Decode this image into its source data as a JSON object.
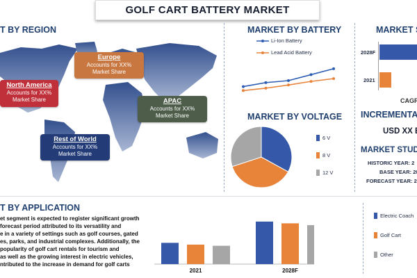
{
  "title": "GOLF CART BATTERY MARKET",
  "region": {
    "section_title": "T BY REGION",
    "boxes": [
      {
        "name": "North America",
        "line1": "Accounts for XX%",
        "line2": "Market Share",
        "color": "#c0303a"
      },
      {
        "name": "Europe",
        "line1": "Accounts for XX%",
        "line2": "Market Share",
        "color": "#c7773f"
      },
      {
        "name": "APAC",
        "line1": "Accounts for XX%",
        "line2": "Market Share",
        "color": "#4e5d4a"
      },
      {
        "name": "Rest of World",
        "line1": "Accounts for XX%",
        "line2": "Market Share",
        "color": "#233c78"
      }
    ]
  },
  "battery": {
    "section_title": "MARKET BY BATTERY",
    "legend": [
      {
        "label": "Li-Ion Battery",
        "color": "#2d5db3"
      },
      {
        "label": "Lead Acid Battery",
        "color": "#e8833a"
      }
    ]
  },
  "voltage": {
    "section_title": "MARKET BY VOLTAGE",
    "legend": [
      {
        "label": "6 V",
        "color": "#3559a8"
      },
      {
        "label": "8 V",
        "color": "#e8833a"
      },
      {
        "label": "12 V",
        "color": "#a6a6a6"
      }
    ]
  },
  "right_panel": {
    "section_title": "MARKET S",
    "bar_labels": [
      "2028F",
      "2021"
    ],
    "cagr": "CAGR",
    "incremental": "INCREMENTAL G",
    "usd": "USD XX BI",
    "study_title": "MARKET STUDY",
    "study_lines": [
      "HISTORIC YEAR: 2",
      "BASE YEAR: 20",
      "FORECAST YEAR: 20"
    ]
  },
  "application": {
    "section_title": "T BY APPLICATION",
    "text_lines": [
      "et segment is expected to register significant growth",
      "forecast period attributed to its versatility and",
      "e in a variety of settings such as golf courses, gated",
      "es, parks, and industrial complexes. Additionally, the",
      "popularity of golf cart rentals for tourism and",
      "as well as the growing interest in electric vehicles,",
      "ntributed to the increase in demand for golf carts"
    ],
    "legend": [
      {
        "label": "Electric Coach",
        "color": "#3559a8"
      },
      {
        "label": "Golf Cart",
        "color": "#e8833a"
      },
      {
        "label": "Other",
        "color": "#a6a6a6"
      }
    ]
  },
  "chart_data": [
    {
      "type": "line",
      "title": "MARKET BY BATTERY",
      "series": [
        {
          "name": "Li-Ion Battery",
          "values": [
            2.0,
            3.0,
            3.5,
            5.0,
            6.5
          ]
        },
        {
          "name": "Lead Acid Battery",
          "values": [
            1.0,
            1.6,
            2.4,
            3.3,
            4.0
          ]
        }
      ]
    },
    {
      "type": "pie",
      "title": "MARKET BY VOLTAGE",
      "categories": [
        "6 V",
        "8 V",
        "12 V"
      ],
      "values": [
        33,
        37,
        30
      ]
    },
    {
      "type": "bar",
      "title": "MARKET S",
      "categories": [
        "2028F",
        "2021"
      ],
      "values": [
        88,
        28
      ]
    },
    {
      "type": "bar",
      "title": "T BY APPLICATION",
      "categories": [
        "2021",
        "2028F"
      ],
      "series": [
        {
          "name": "Electric Coach",
          "values": [
            36,
            72
          ]
        },
        {
          "name": "Golf Cart",
          "values": [
            33,
            69
          ]
        },
        {
          "name": "Other",
          "values": [
            31,
            66
          ]
        }
      ]
    }
  ]
}
